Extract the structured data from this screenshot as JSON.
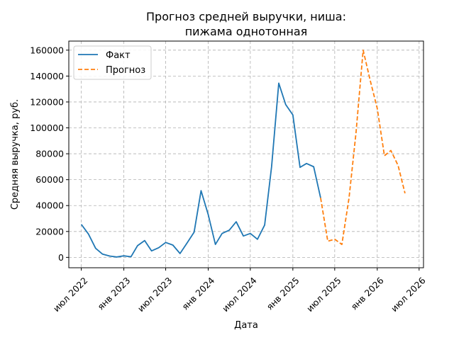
{
  "chart_data": {
    "type": "line",
    "title_lines": [
      "Прогноз средней выручки, ниша:",
      "пижама однотонная"
    ],
    "xlabel": "Дата",
    "ylabel": "Средняя выручка, руб.",
    "x_range": [
      "2022-05-08",
      "2026-07-20"
    ],
    "ylim": [
      -8000,
      167000
    ],
    "y_ticks": [
      0,
      20000,
      40000,
      60000,
      80000,
      100000,
      120000,
      140000,
      160000
    ],
    "y_tick_labels": [
      "0",
      "20000",
      "40000",
      "60000",
      "80000",
      "100000",
      "120000",
      "140000",
      "160000"
    ],
    "x_ticks": [
      "2022-07-01",
      "2023-01-01",
      "2023-07-01",
      "2024-01-01",
      "2024-07-01",
      "2025-01-01",
      "2025-07-01",
      "2026-01-01",
      "2026-07-01"
    ],
    "x_tick_labels": [
      "июл 2022",
      "янв 2023",
      "июл 2023",
      "янв 2024",
      "июл 2024",
      "янв 2025",
      "июл 2025",
      "янв 2026",
      "июл 2026"
    ],
    "grid": true,
    "legend_position": "top-left",
    "series": [
      {
        "name": "Факт",
        "color": "#1f77b4",
        "style": "solid",
        "points": [
          [
            "2022-07-01",
            25500
          ],
          [
            "2022-08-01",
            18000
          ],
          [
            "2022-09-01",
            7000
          ],
          [
            "2022-10-01",
            2500
          ],
          [
            "2022-11-01",
            1000
          ],
          [
            "2022-12-01",
            300
          ],
          [
            "2023-01-01",
            1200
          ],
          [
            "2023-02-01",
            500
          ],
          [
            "2023-03-01",
            9000
          ],
          [
            "2023-04-01",
            13000
          ],
          [
            "2023-05-01",
            5000
          ],
          [
            "2023-06-01",
            7500
          ],
          [
            "2023-07-01",
            11500
          ],
          [
            "2023-08-01",
            9500
          ],
          [
            "2023-09-01",
            3000
          ],
          [
            "2023-10-01",
            11000
          ],
          [
            "2023-11-01",
            19500
          ],
          [
            "2023-12-01",
            51500
          ],
          [
            "2024-01-01",
            33000
          ],
          [
            "2024-02-01",
            10000
          ],
          [
            "2024-03-01",
            18500
          ],
          [
            "2024-04-01",
            21000
          ],
          [
            "2024-05-01",
            27500
          ],
          [
            "2024-06-01",
            16500
          ],
          [
            "2024-07-01",
            18500
          ],
          [
            "2024-08-01",
            14000
          ],
          [
            "2024-09-01",
            25000
          ],
          [
            "2024-10-01",
            70000
          ],
          [
            "2024-11-01",
            134500
          ],
          [
            "2024-12-01",
            118000
          ],
          [
            "2025-01-01",
            110000
          ],
          [
            "2025-02-01",
            69500
          ],
          [
            "2025-03-01",
            72500
          ],
          [
            "2025-04-01",
            70000
          ],
          [
            "2025-05-01",
            46000
          ]
        ]
      },
      {
        "name": "Прогноз",
        "color": "#ff7f0e",
        "style": "dashed",
        "points": [
          [
            "2025-05-01",
            46000
          ],
          [
            "2025-06-01",
            12500
          ],
          [
            "2025-07-01",
            14000
          ],
          [
            "2025-08-01",
            10000
          ],
          [
            "2025-09-01",
            46000
          ],
          [
            "2025-10-01",
            96000
          ],
          [
            "2025-11-01",
            160000
          ],
          [
            "2025-12-01",
            137000
          ],
          [
            "2026-01-01",
            115000
          ],
          [
            "2026-02-01",
            78500
          ],
          [
            "2026-03-01",
            82500
          ],
          [
            "2026-04-01",
            71000
          ],
          [
            "2026-05-01",
            49500
          ]
        ]
      }
    ]
  }
}
